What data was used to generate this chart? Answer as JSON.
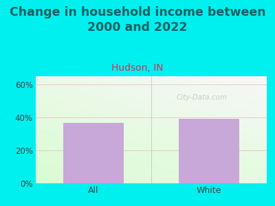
{
  "title": "Change in household income between\n2000 and 2022",
  "subtitle": "Hudson, IN",
  "categories": [
    "All",
    "White"
  ],
  "values": [
    36.5,
    39.0
  ],
  "bar_color": "#c8a8d8",
  "background_color": "#00f0f0",
  "title_fontsize": 12.5,
  "subtitle_fontsize": 10,
  "subtitle_color": "#cc3355",
  "title_color": "#1a6060",
  "ylabel_ticks": [
    0,
    20,
    40,
    60
  ],
  "ylim": [
    0,
    65
  ],
  "tick_label_color": "#444444",
  "watermark": "City-Data.com",
  "grid_line_color": "#e8c8c8",
  "bottom_line_color": "#bbbbbb"
}
